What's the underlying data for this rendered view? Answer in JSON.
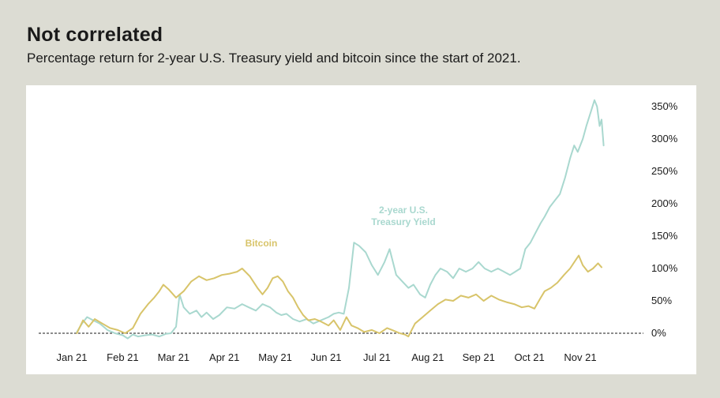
{
  "header": {
    "title": "Not correlated",
    "subtitle": "Percentage return for 2-year U.S. Treasury yield and bitcoin since the start of 2021."
  },
  "colors": {
    "background": "#dcdcd3",
    "panel": "#ffffff",
    "bitcoin": "#d8c46a",
    "treasury": "#a9d8cf"
  },
  "chart_data": {
    "type": "line",
    "title": "Not correlated",
    "subtitle": "Percentage return for 2-year U.S. Treasury yield and bitcoin since the start of 2021.",
    "xlabel": "",
    "ylabel": "",
    "x_ticks": [
      "Jan 21",
      "Feb 21",
      "Mar 21",
      "Apr 21",
      "May 21",
      "Jun 21",
      "Jul 21",
      "Aug 21",
      "Sep 21",
      "Oct 21",
      "Nov 21"
    ],
    "y_ticks": [
      0,
      50,
      100,
      150,
      200,
      250,
      300,
      350
    ],
    "y_tick_labels": [
      "0%",
      "50%",
      "100%",
      "150%",
      "200%",
      "250%",
      "300%",
      "350%"
    ],
    "ylim": [
      -10,
      360
    ],
    "grid": false,
    "zero_line": "dashed",
    "series": [
      {
        "name": "Bitcoin",
        "color": "#d8c46a",
        "values": [
          [
            0.1,
            0
          ],
          [
            0.22,
            20
          ],
          [
            0.33,
            10
          ],
          [
            0.45,
            22
          ],
          [
            0.6,
            15
          ],
          [
            0.75,
            8
          ],
          [
            0.9,
            5
          ],
          [
            1.05,
            0
          ],
          [
            1.2,
            8
          ],
          [
            1.35,
            30
          ],
          [
            1.5,
            45
          ],
          [
            1.62,
            55
          ],
          [
            1.72,
            65
          ],
          [
            1.8,
            75
          ],
          [
            1.9,
            68
          ],
          [
            2.05,
            55
          ],
          [
            2.2,
            65
          ],
          [
            2.35,
            80
          ],
          [
            2.5,
            88
          ],
          [
            2.65,
            82
          ],
          [
            2.8,
            85
          ],
          [
            2.95,
            90
          ],
          [
            3.1,
            92
          ],
          [
            3.25,
            95
          ],
          [
            3.35,
            100
          ],
          [
            3.5,
            88
          ],
          [
            3.65,
            70
          ],
          [
            3.75,
            60
          ],
          [
            3.85,
            70
          ],
          [
            3.95,
            85
          ],
          [
            4.05,
            88
          ],
          [
            4.15,
            80
          ],
          [
            4.25,
            65
          ],
          [
            4.35,
            55
          ],
          [
            4.45,
            40
          ],
          [
            4.55,
            28
          ],
          [
            4.65,
            20
          ],
          [
            4.78,
            22
          ],
          [
            4.9,
            18
          ],
          [
            5.05,
            12
          ],
          [
            5.15,
            20
          ],
          [
            5.28,
            5
          ],
          [
            5.4,
            25
          ],
          [
            5.5,
            12
          ],
          [
            5.62,
            8
          ],
          [
            5.75,
            2
          ],
          [
            5.9,
            5
          ],
          [
            6.05,
            0
          ],
          [
            6.2,
            8
          ],
          [
            6.3,
            5
          ],
          [
            6.45,
            0
          ],
          [
            6.55,
            -2
          ],
          [
            6.62,
            -5
          ],
          [
            6.75,
            15
          ],
          [
            6.9,
            25
          ],
          [
            7.05,
            35
          ],
          [
            7.2,
            45
          ],
          [
            7.35,
            52
          ],
          [
            7.5,
            50
          ],
          [
            7.65,
            58
          ],
          [
            7.8,
            55
          ],
          [
            7.95,
            60
          ],
          [
            8.1,
            50
          ],
          [
            8.25,
            58
          ],
          [
            8.4,
            52
          ],
          [
            8.55,
            48
          ],
          [
            8.7,
            45
          ],
          [
            8.85,
            40
          ],
          [
            8.98,
            42
          ],
          [
            9.1,
            38
          ],
          [
            9.2,
            52
          ],
          [
            9.3,
            65
          ],
          [
            9.42,
            70
          ],
          [
            9.55,
            78
          ],
          [
            9.68,
            90
          ],
          [
            9.8,
            100
          ],
          [
            9.9,
            112
          ],
          [
            9.97,
            120
          ],
          [
            10.05,
            105
          ],
          [
            10.15,
            95
          ],
          [
            10.25,
            100
          ],
          [
            10.35,
            108
          ],
          [
            10.42,
            102
          ]
        ]
      },
      {
        "name": "2-year U.S. Treasury Yield",
        "color": "#a9d8cf",
        "values": [
          [
            0.1,
            2
          ],
          [
            0.2,
            15
          ],
          [
            0.3,
            25
          ],
          [
            0.42,
            20
          ],
          [
            0.55,
            15
          ],
          [
            0.7,
            5
          ],
          [
            0.85,
            0
          ],
          [
            1.0,
            -3
          ],
          [
            1.1,
            -8
          ],
          [
            1.2,
            -2
          ],
          [
            1.3,
            -5
          ],
          [
            1.45,
            -3
          ],
          [
            1.58,
            -2
          ],
          [
            1.72,
            -5
          ],
          [
            1.85,
            -1
          ],
          [
            1.95,
            0
          ],
          [
            2.05,
            10
          ],
          [
            2.12,
            60
          ],
          [
            2.2,
            40
          ],
          [
            2.32,
            30
          ],
          [
            2.45,
            35
          ],
          [
            2.55,
            25
          ],
          [
            2.65,
            32
          ],
          [
            2.78,
            22
          ],
          [
            2.9,
            28
          ],
          [
            3.05,
            40
          ],
          [
            3.2,
            38
          ],
          [
            3.35,
            45
          ],
          [
            3.48,
            40
          ],
          [
            3.62,
            35
          ],
          [
            3.75,
            45
          ],
          [
            3.9,
            40
          ],
          [
            4.02,
            32
          ],
          [
            4.12,
            28
          ],
          [
            4.22,
            30
          ],
          [
            4.35,
            22
          ],
          [
            4.48,
            18
          ],
          [
            4.62,
            22
          ],
          [
            4.75,
            15
          ],
          [
            4.9,
            20
          ],
          [
            5.05,
            25
          ],
          [
            5.15,
            30
          ],
          [
            5.25,
            32
          ],
          [
            5.35,
            30
          ],
          [
            5.45,
            70
          ],
          [
            5.55,
            140
          ],
          [
            5.65,
            135
          ],
          [
            5.78,
            125
          ],
          [
            5.9,
            105
          ],
          [
            6.02,
            90
          ],
          [
            6.15,
            110
          ],
          [
            6.25,
            130
          ],
          [
            6.38,
            90
          ],
          [
            6.5,
            80
          ],
          [
            6.62,
            70
          ],
          [
            6.72,
            75
          ],
          [
            6.85,
            60
          ],
          [
            6.95,
            55
          ],
          [
            7.05,
            75
          ],
          [
            7.15,
            90
          ],
          [
            7.25,
            100
          ],
          [
            7.38,
            95
          ],
          [
            7.5,
            85
          ],
          [
            7.62,
            100
          ],
          [
            7.75,
            95
          ],
          [
            7.88,
            100
          ],
          [
            8.0,
            110
          ],
          [
            8.12,
            100
          ],
          [
            8.25,
            95
          ],
          [
            8.38,
            100
          ],
          [
            8.5,
            95
          ],
          [
            8.62,
            90
          ],
          [
            8.72,
            95
          ],
          [
            8.82,
            100
          ],
          [
            8.92,
            130
          ],
          [
            9.02,
            140
          ],
          [
            9.12,
            155
          ],
          [
            9.22,
            170
          ],
          [
            9.3,
            180
          ],
          [
            9.4,
            195
          ],
          [
            9.5,
            205
          ],
          [
            9.6,
            215
          ],
          [
            9.7,
            240
          ],
          [
            9.8,
            270
          ],
          [
            9.88,
            290
          ],
          [
            9.95,
            280
          ],
          [
            10.05,
            300
          ],
          [
            10.12,
            320
          ],
          [
            10.2,
            340
          ],
          [
            10.28,
            360
          ],
          [
            10.33,
            350
          ],
          [
            10.38,
            320
          ],
          [
            10.42,
            330
          ],
          [
            10.46,
            290
          ]
        ]
      }
    ],
    "annotations": [
      {
        "series": "Bitcoin",
        "text": "Bitcoin"
      },
      {
        "series": "2-year U.S. Treasury Yield",
        "text": "2-year U.S.\nTreasury Yield"
      }
    ]
  }
}
